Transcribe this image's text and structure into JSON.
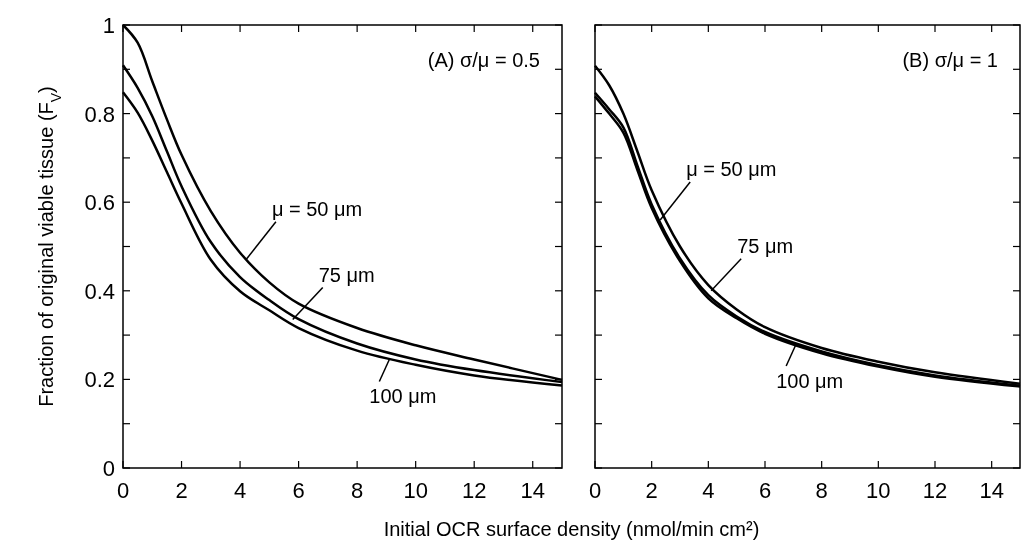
{
  "chart_data": [
    {
      "type": "line",
      "title": "(A) σ/μ = 0.5",
      "ylabel": "Fraction of original viable tissue (F$_{V}$)",
      "xlabel": "Initial OCR surface density (nmol/min cm²)",
      "xlim": [
        0,
        15
      ],
      "xticks": [
        0,
        2,
        4,
        6,
        8,
        10,
        12,
        14
      ],
      "ylim": [
        0,
        1
      ],
      "yticks": [
        0,
        {
          "value": 0.1,
          "label": null
        },
        0.2,
        {
          "value": 0.3,
          "label": null
        },
        0.4,
        {
          "value": 0.5,
          "label": null
        },
        0.6,
        {
          "value": 0.7,
          "label": null
        },
        0.8,
        {
          "value": 0.9,
          "label": null
        },
        1
      ],
      "x": [
        0,
        0.5,
        1,
        1.5,
        2,
        3,
        4,
        5,
        6,
        8,
        10,
        12,
        15
      ],
      "series": [
        {
          "color": "#000000",
          "values": [
            1.0,
            0.96,
            0.873,
            0.787,
            0.707,
            0.58,
            0.486,
            0.419,
            0.371,
            0.316,
            0.277,
            0.245,
            0.199
          ]
        },
        {
          "color": "#000000",
          "values": [
            0.909,
            0.858,
            0.794,
            0.715,
            0.636,
            0.51,
            0.431,
            0.379,
            0.336,
            0.281,
            0.245,
            0.221,
            0.194
          ]
        },
        {
          "color": "#000000",
          "values": [
            0.848,
            0.802,
            0.739,
            0.668,
            0.597,
            0.47,
            0.399,
            0.356,
            0.316,
            0.265,
            0.233,
            0.209,
            0.186
          ]
        }
      ],
      "annotations": [
        {
          "text": "μ = 50 μm",
          "x": 4.2,
          "y": 0.47
        },
        {
          "text": "75 μm",
          "x": 5.8,
          "y": 0.335
        },
        {
          "text": "100 μm",
          "x": 9.1,
          "y": 0.245
        }
      ],
      "line_style": "solid",
      "grid": false
    },
    {
      "type": "line",
      "title": "(B) σ/μ = 1",
      "xlim": [
        0,
        15
      ],
      "xticks": [
        0,
        2,
        4,
        6,
        8,
        10,
        12,
        14
      ],
      "ylim": [
        0,
        1
      ],
      "yticks": [
        0,
        {
          "value": 0.1,
          "label": null
        },
        0.2,
        {
          "value": 0.3,
          "label": null
        },
        0.4,
        {
          "value": 0.5,
          "label": null
        },
        0.6,
        {
          "value": 0.7,
          "label": null
        },
        0.8,
        {
          "value": 0.9,
          "label": null
        },
        1
      ],
      "tick_labels": "x",
      "x": [
        0,
        0.5,
        1,
        1.5,
        2,
        3,
        4,
        5,
        6,
        8,
        10,
        12,
        15
      ],
      "series": [
        {
          "color": "#000000",
          "values": [
            0.908,
            0.864,
            0.8,
            0.714,
            0.627,
            0.5,
            0.413,
            0.358,
            0.318,
            0.271,
            0.24,
            0.216,
            0.19
          ]
        },
        {
          "color": "#000000",
          "values": [
            0.847,
            0.81,
            0.769,
            0.682,
            0.595,
            0.473,
            0.39,
            0.342,
            0.307,
            0.263,
            0.232,
            0.209,
            0.186
          ]
        },
        {
          "color": "#000000",
          "values": [
            0.839,
            0.8,
            0.757,
            0.672,
            0.587,
            0.467,
            0.383,
            0.338,
            0.303,
            0.259,
            0.229,
            0.206,
            0.184
          ]
        }
      ],
      "annotations": [
        {
          "text": "μ = 50 μm",
          "x": 2.3,
          "y": 0.56
        },
        {
          "text": "75 μm",
          "x": 4.1,
          "y": 0.4
        },
        {
          "text": "100 μm",
          "x": 7.1,
          "y": 0.28
        }
      ],
      "line_style": "solid",
      "grid": false
    }
  ]
}
